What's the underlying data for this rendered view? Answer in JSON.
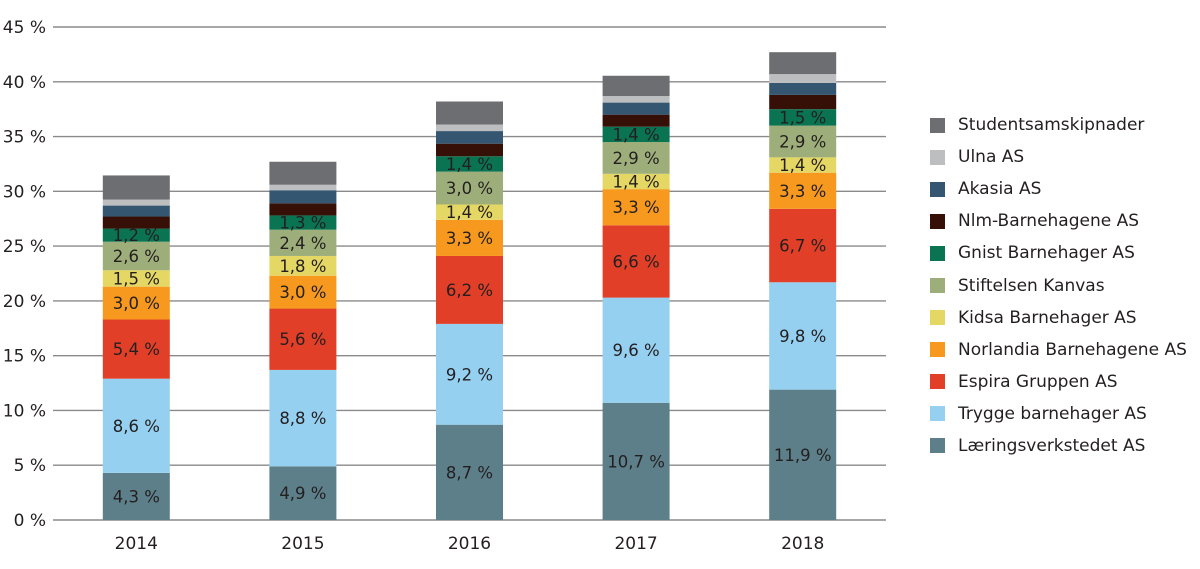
{
  "chart_data": {
    "type": "bar",
    "stacked": true,
    "title": "",
    "xlabel": "",
    "ylabel": "",
    "ylim": [
      0,
      45
    ],
    "yticks": [
      0,
      5,
      10,
      15,
      20,
      25,
      30,
      35,
      40,
      45
    ],
    "ytick_labels": [
      "0 %",
      "5 %",
      "10 %",
      "15 %",
      "20 %",
      "25 %",
      "30 %",
      "35 %",
      "40 %",
      "45 %"
    ],
    "grid": true,
    "legend_position": "right",
    "categories": [
      "2014",
      "2015",
      "2016",
      "2017",
      "2018"
    ],
    "series": [
      {
        "name": "Læringsverkstedet AS",
        "color": "#5d7f8a",
        "values": [
          4.3,
          4.9,
          8.7,
          10.7,
          11.9
        ],
        "labels": [
          "4,3 %",
          "4,9 %",
          "8,7 %",
          "10,7 %",
          "11,9 %"
        ]
      },
      {
        "name": "Trygge barnehager AS",
        "color": "#96d0f1",
        "values": [
          8.6,
          8.8,
          9.2,
          9.6,
          9.8
        ],
        "labels": [
          "8,6 %",
          "8,8 %",
          "9,2 %",
          "9,6 %",
          "9,8 %"
        ]
      },
      {
        "name": "Espira Gruppen AS",
        "color": "#e13f28",
        "values": [
          5.4,
          5.6,
          6.2,
          6.6,
          6.7
        ],
        "labels": [
          "5,4 %",
          "5,6 %",
          "6,2 %",
          "6,6 %",
          "6,7 %"
        ]
      },
      {
        "name": "Norlandia Barnehagene AS",
        "color": "#f7991f",
        "values": [
          3.0,
          3.0,
          3.3,
          3.3,
          3.3
        ],
        "labels": [
          "3,0 %",
          "3,0 %",
          "3,3 %",
          "3,3 %",
          "3,3 %"
        ]
      },
      {
        "name": "Kidsa Barnehager AS",
        "color": "#e5d764",
        "values": [
          1.5,
          1.8,
          1.4,
          1.4,
          1.4
        ],
        "labels": [
          "1,5 %",
          "1,8 %",
          "1,4 %",
          "1,4 %",
          "1,4 %"
        ]
      },
      {
        "name": "Stiftelsen Kanvas",
        "color": "#9eae7a",
        "values": [
          2.6,
          2.4,
          3.0,
          2.9,
          2.9
        ],
        "labels": [
          "2,6 %",
          "2,4 %",
          "3,0 %",
          "2,9 %",
          "2,9 %"
        ]
      },
      {
        "name": "Gnist Barnehager AS",
        "color": "#0a7351",
        "values": [
          1.2,
          1.3,
          1.4,
          1.4,
          1.5
        ],
        "labels": [
          "1,2 %",
          "1,3 %",
          "1,4 %",
          "1,4 %",
          "1,5 %"
        ]
      },
      {
        "name": "Nlm-Barnehagene AS",
        "color": "#361007",
        "values": [
          1.1,
          1.1,
          1.15,
          1.1,
          1.3
        ],
        "labels": []
      },
      {
        "name": "Akasia AS",
        "color": "#345670",
        "values": [
          1.0,
          1.2,
          1.15,
          1.1,
          1.1
        ],
        "labels": []
      },
      {
        "name": "Ulna AS",
        "color": "#bdbec0",
        "values": [
          0.55,
          0.5,
          0.6,
          0.6,
          0.8
        ],
        "labels": []
      },
      {
        "name": "Studentsamskipnader",
        "color": "#6d6e71",
        "values": [
          2.2,
          2.1,
          2.1,
          1.85,
          2.0
        ],
        "labels": []
      }
    ],
    "gridline_color": "#8a8a8a"
  }
}
